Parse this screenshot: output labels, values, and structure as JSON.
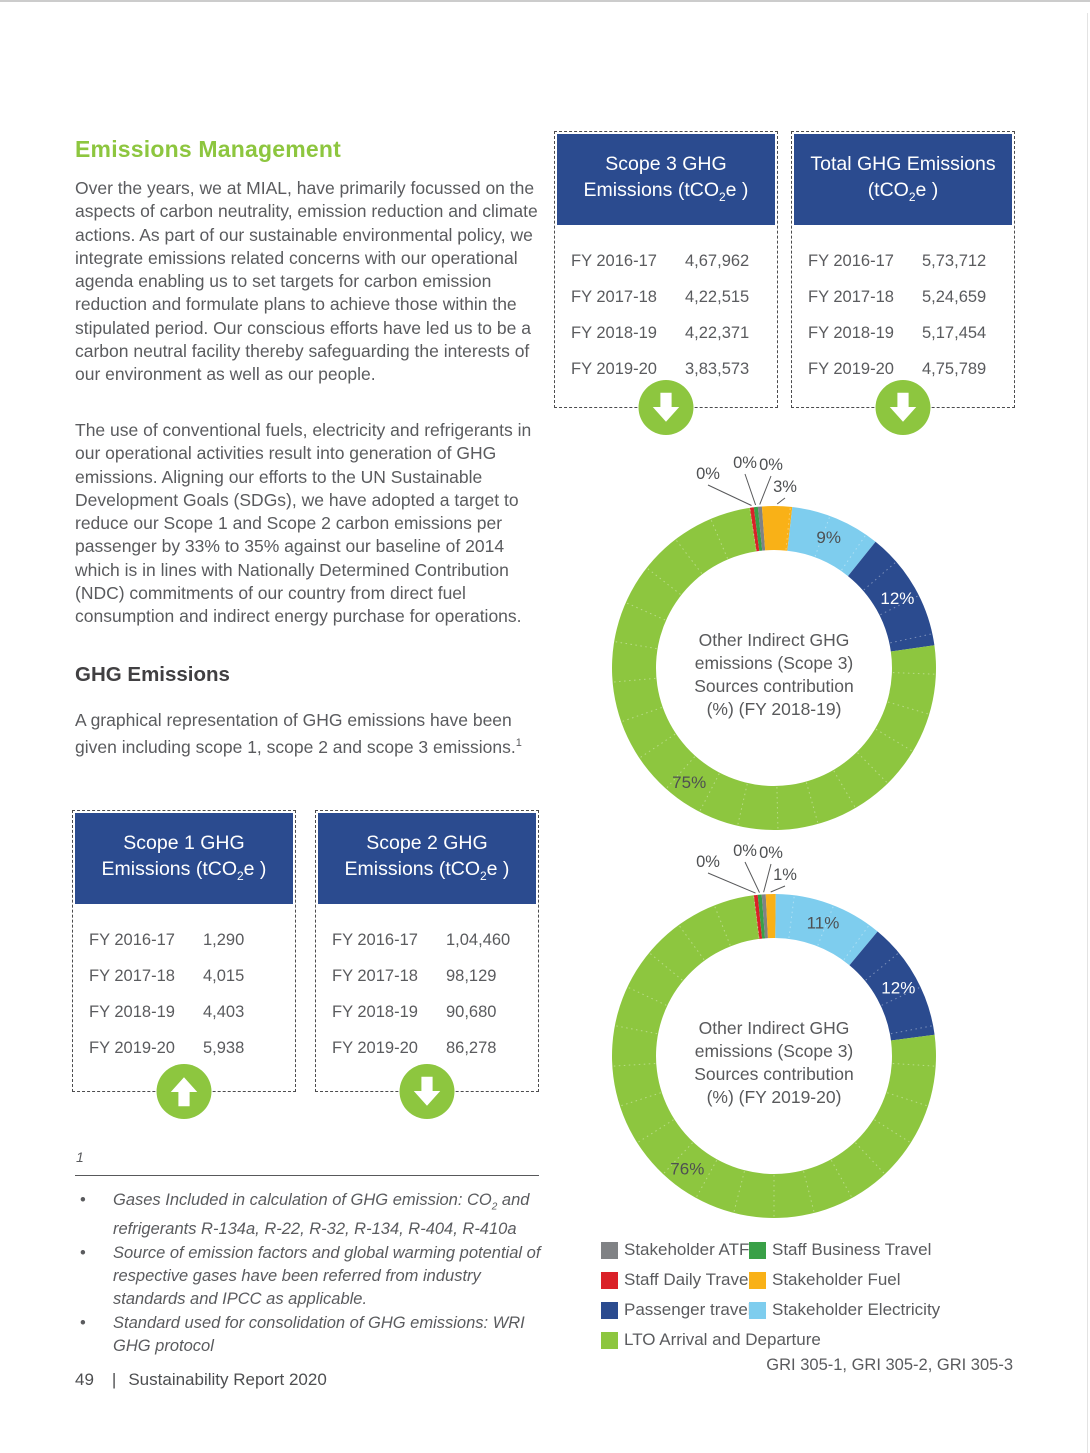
{
  "colors": {
    "accent_green": "#8dc63f",
    "navy": "#2b4b8f",
    "text_gray": "#5a5b5e",
    "red": "#da2128",
    "mid_green": "#39a047",
    "gray": "#808285",
    "yellow": "#f9b117",
    "light_blue": "#7ecdee"
  },
  "left_column": {
    "heading": "Emissions Management",
    "paragraph_1": "Over the years, we at MIAL, have primarily focussed on the aspects of carbon neutrality, emission reduction and climate actions. As part of our sustainable environmental policy, we integrate emissions related concerns with our operational agenda enabling us to set targets for carbon emission reduction and formulate plans to achieve those within the stipulated period. Our conscious efforts have led us to be a carbon neutral facility thereby safeguarding the interests of our environment as well as our people.",
    "paragraph_2": "The use of conventional fuels, electricity and refrigerants in our operational activities result into generation of GHG emissions. Aligning our efforts to the UN Sustainable Development Goals (SDGs), we have adopted a target to reduce our Scope 1 and Scope 2 carbon emissions per passenger by 33% to 35% against our baseline of 2014 which is in lines with Nationally Determined Contribution (NDC) commitments of our country from direct fuel consumption and indirect energy purchase for operations.",
    "subheading": "GHG Emissions",
    "paragraph_3": "A graphical representation of GHG emissions have been given including scope 1, scope 2 and scope 3 emissions.",
    "footnote_ref": "1",
    "footnote_marker": "1",
    "footnotes": [
      {
        "pre": "Gases Included in calculation of GHG emission: CO",
        "sub": "2",
        "post": " and refrigerants R-134a, R-22, R-32, R-134, R-404, R-410a"
      },
      {
        "pre": "Source of emission factors and global warming potential of respective gases have been referred from industry standards and IPCC as applicable.",
        "sub": "",
        "post": ""
      },
      {
        "pre": "Standard used for consolidation of GHG emissions: WRI GHG protocol",
        "sub": "",
        "post": ""
      }
    ]
  },
  "ghg_tables": {
    "scope3": {
      "title_line1": "Scope 3 GHG",
      "title_line2_pre": "Emissions (tCO",
      "title_sub": "2",
      "title_line2_post": "e )",
      "rows": [
        {
          "label": "FY 2016-17",
          "value": "4,67,962"
        },
        {
          "label": "FY 2017-18",
          "value": "4,22,515"
        },
        {
          "label": "FY 2018-19",
          "value": "4,22,371"
        },
        {
          "label": "FY 2019-20",
          "value": "3,83,573"
        }
      ],
      "trend": "down"
    },
    "total": {
      "title_line1": "Total GHG Emissions",
      "title_line2_pre": "(tCO",
      "title_sub": "2",
      "title_line2_post": "e )",
      "rows": [
        {
          "label": "FY 2016-17",
          "value": "5,73,712"
        },
        {
          "label": "FY 2017-18",
          "value": "5,24,659"
        },
        {
          "label": "FY 2018-19",
          "value": "5,17,454"
        },
        {
          "label": "FY 2019-20",
          "value": "4,75,789"
        }
      ],
      "trend": "down"
    },
    "scope1": {
      "title_line1": "Scope 1 GHG",
      "title_line2_pre": "Emissions (tCO",
      "title_sub": "2",
      "title_line2_post": "e )",
      "rows": [
        {
          "label": "FY 2016-17",
          "value": "1,290"
        },
        {
          "label": "FY 2017-18",
          "value": "4,015"
        },
        {
          "label": "FY 2018-19",
          "value": "4,403"
        },
        {
          "label": "FY 2019-20",
          "value": "5,938"
        }
      ],
      "trend": "up"
    },
    "scope2": {
      "title_line1": "Scope 2 GHG",
      "title_line2_pre": "Emissions (tCO",
      "title_sub": "2",
      "title_line2_post": "e )",
      "rows": [
        {
          "label": "FY 2016-17",
          "value": "1,04,460"
        },
        {
          "label": "FY 2017-18",
          "value": "98,129"
        },
        {
          "label": "FY 2018-19",
          "value": "90,680"
        },
        {
          "label": "FY 2019-20",
          "value": "86,278"
        }
      ],
      "trend": "down"
    }
  },
  "chart_data": [
    {
      "type": "donut",
      "title": "Other Indirect GHG emissions (Scope 3) Sources contribution (%) (FY 2018-19)",
      "center_text_lines": [
        "Other Indirect GHG",
        "emissions (Scope 3)",
        "Sources contribution",
        "(%) (FY 2018-19)"
      ],
      "categories": [
        "Staff Daily Travel",
        "Staff Business Travel",
        "Stakeholder ATF",
        "Stakeholder Fuel",
        "Stakeholder Electricity",
        "Passenger travel",
        "LTO Arrival and Departure"
      ],
      "values": [
        0.4,
        0.4,
        0.4,
        3,
        9,
        12,
        75
      ],
      "labels": [
        "0%",
        "0%",
        "0%",
        "3%",
        "9%",
        "12%",
        "75%"
      ],
      "colors": [
        "#da2128",
        "#39a047",
        "#808285",
        "#f9b117",
        "#7ecdee",
        "#2b4b8f",
        "#8dc63f"
      ],
      "start_angle_deg": -8.6,
      "legend_position": "shared-bottom"
    },
    {
      "type": "donut",
      "title": "Other Indirect GHG emissions (Scope 3) Sources contribution (%) (FY 2019-20)",
      "center_text_lines": [
        "Other Indirect GHG",
        "emissions (Scope 3)",
        "Sources contribution",
        "(%) (FY 2019-20)"
      ],
      "categories": [
        "Staff Daily Travel",
        "Staff Business Travel",
        "Stakeholder ATF",
        "Stakeholder Fuel",
        "Stakeholder Electricity",
        "Passenger travel",
        "LTO Arrival and Departure"
      ],
      "values": [
        0.4,
        0.4,
        0.4,
        1,
        11,
        12,
        76
      ],
      "labels": [
        "0%",
        "0%",
        "0%",
        "1%",
        "11%",
        "12%",
        "76%"
      ],
      "colors": [
        "#da2128",
        "#39a047",
        "#808285",
        "#f9b117",
        "#7ecdee",
        "#2b4b8f",
        "#8dc63f"
      ],
      "start_angle_deg": -7.2,
      "legend_position": "shared-bottom"
    }
  ],
  "legend": {
    "items": [
      {
        "label": "Stakeholder ATF",
        "color": "#808285"
      },
      {
        "label": "Staff Business Travel",
        "color": "#39a047"
      },
      {
        "label": "Staff Daily Travel",
        "color": "#da2128"
      },
      {
        "label": "Stakeholder Fuel",
        "color": "#f9b117"
      },
      {
        "label": "Passenger travel",
        "color": "#2b4b8f"
      },
      {
        "label": "Stakeholder Electricity",
        "color": "#7ecdee"
      },
      {
        "label": "LTO Arrival and Departure",
        "color": "#8dc63f"
      }
    ]
  },
  "gri_reference": "GRI 305-1, GRI 305-2, GRI 305-3",
  "footer": {
    "page_number": "49",
    "divider": "|",
    "report_title": "Sustainability Report 2020"
  }
}
